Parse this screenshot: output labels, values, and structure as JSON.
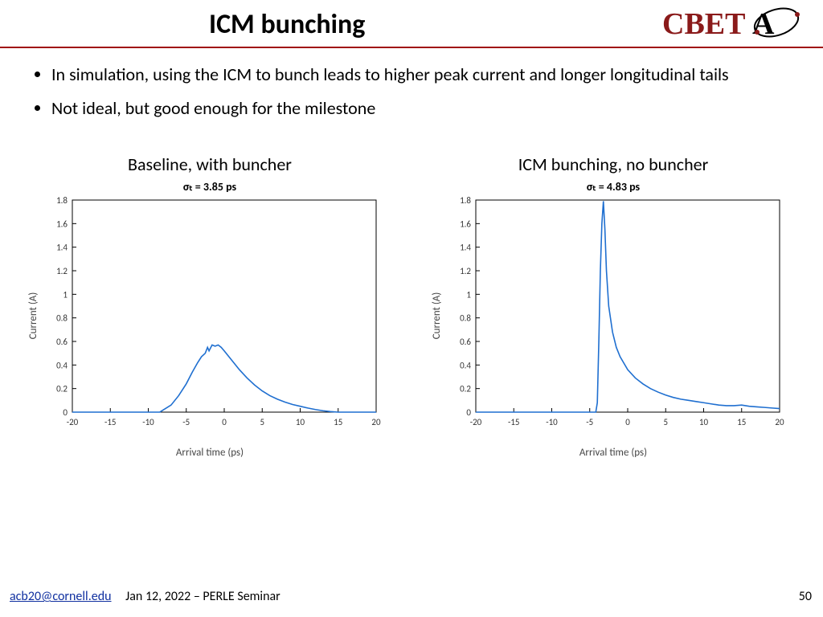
{
  "header": {
    "title": "ICM bunching",
    "logo_text_main": "CBET",
    "logo_color_main": "#8a1a1a",
    "logo_color_accent": "#000000"
  },
  "bullets": [
    "In simulation, using the ICM to bunch leads to higher peak current and longer longitudinal tails",
    "Not ideal, but good enough for the milestone"
  ],
  "chart_common": {
    "xlabel": "Arrival time (ps)",
    "ylabel": "Current (A)",
    "xmin": -20,
    "xmax": 20,
    "xtick_step": 5,
    "ymin": 0,
    "ymax": 1.8,
    "ytick_step": 0.2,
    "line_color": "#1f6fd0",
    "line_width": 1.6,
    "axis_color": "#000000",
    "tick_color": "#000000",
    "bg_color": "#ffffff",
    "label_fontsize": 13,
    "tick_fontsize": 11
  },
  "charts": [
    {
      "caption": "Baseline, with buncher",
      "sigma_label": "σₜ = 3.85 ps",
      "data": [
        {
          "x": -20,
          "y": 0
        },
        {
          "x": -8.5,
          "y": 0
        },
        {
          "x": -8,
          "y": 0.02
        },
        {
          "x": -7,
          "y": 0.06
        },
        {
          "x": -6,
          "y": 0.14
        },
        {
          "x": -5,
          "y": 0.24
        },
        {
          "x": -4.2,
          "y": 0.34
        },
        {
          "x": -3.5,
          "y": 0.42
        },
        {
          "x": -3.0,
          "y": 0.47
        },
        {
          "x": -2.5,
          "y": 0.5
        },
        {
          "x": -2.2,
          "y": 0.55
        },
        {
          "x": -2.0,
          "y": 0.52
        },
        {
          "x": -1.6,
          "y": 0.57
        },
        {
          "x": -1.2,
          "y": 0.56
        },
        {
          "x": -0.8,
          "y": 0.57
        },
        {
          "x": -0.4,
          "y": 0.55
        },
        {
          "x": 0,
          "y": 0.52
        },
        {
          "x": 0.5,
          "y": 0.48
        },
        {
          "x": 1,
          "y": 0.44
        },
        {
          "x": 2,
          "y": 0.36
        },
        {
          "x": 3,
          "y": 0.29
        },
        {
          "x": 4,
          "y": 0.23
        },
        {
          "x": 5,
          "y": 0.18
        },
        {
          "x": 6,
          "y": 0.14
        },
        {
          "x": 7,
          "y": 0.11
        },
        {
          "x": 8,
          "y": 0.085
        },
        {
          "x": 9,
          "y": 0.065
        },
        {
          "x": 10,
          "y": 0.05
        },
        {
          "x": 11,
          "y": 0.035
        },
        {
          "x": 12,
          "y": 0.022
        },
        {
          "x": 13,
          "y": 0.012
        },
        {
          "x": 14,
          "y": 0.005
        },
        {
          "x": 15,
          "y": 0
        },
        {
          "x": 20,
          "y": 0
        }
      ]
    },
    {
      "caption": "ICM bunching, no buncher",
      "sigma_label": "σₜ = 4.83 ps",
      "data": [
        {
          "x": -20,
          "y": 0
        },
        {
          "x": -4.2,
          "y": 0
        },
        {
          "x": -4.0,
          "y": 0.08
        },
        {
          "x": -3.8,
          "y": 0.6
        },
        {
          "x": -3.6,
          "y": 1.2
        },
        {
          "x": -3.4,
          "y": 1.6
        },
        {
          "x": -3.2,
          "y": 1.79
        },
        {
          "x": -3.0,
          "y": 1.55
        },
        {
          "x": -2.8,
          "y": 1.2
        },
        {
          "x": -2.5,
          "y": 0.9
        },
        {
          "x": -2.0,
          "y": 0.68
        },
        {
          "x": -1.5,
          "y": 0.55
        },
        {
          "x": -1.0,
          "y": 0.47
        },
        {
          "x": 0,
          "y": 0.36
        },
        {
          "x": 1,
          "y": 0.29
        },
        {
          "x": 2,
          "y": 0.24
        },
        {
          "x": 3,
          "y": 0.2
        },
        {
          "x": 4,
          "y": 0.17
        },
        {
          "x": 5,
          "y": 0.145
        },
        {
          "x": 6,
          "y": 0.125
        },
        {
          "x": 7,
          "y": 0.11
        },
        {
          "x": 8,
          "y": 0.1
        },
        {
          "x": 9,
          "y": 0.09
        },
        {
          "x": 10,
          "y": 0.08
        },
        {
          "x": 11,
          "y": 0.07
        },
        {
          "x": 12,
          "y": 0.06
        },
        {
          "x": 13,
          "y": 0.055
        },
        {
          "x": 14,
          "y": 0.055
        },
        {
          "x": 15,
          "y": 0.06
        },
        {
          "x": 16,
          "y": 0.05
        },
        {
          "x": 17,
          "y": 0.045
        },
        {
          "x": 18,
          "y": 0.04
        },
        {
          "x": 19,
          "y": 0.035
        },
        {
          "x": 20,
          "y": 0.03
        }
      ]
    }
  ],
  "footer": {
    "email": "acb20@cornell.edu",
    "info": "Jan 12, 2022 – PERLE Seminar",
    "page": "50"
  }
}
